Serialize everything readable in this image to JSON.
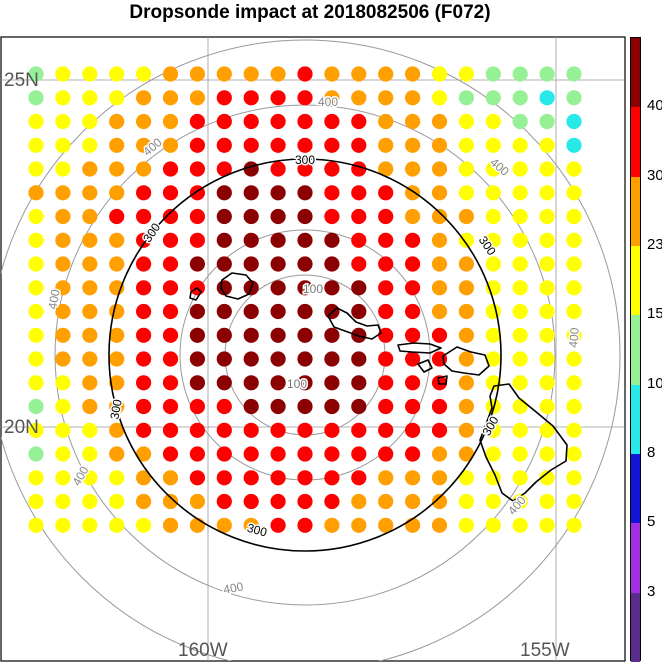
{
  "title": "Dropsonde impact at 2018082506 (F072)",
  "lat_labels": [
    "25N",
    "20N"
  ],
  "lon_labels": [
    "160W",
    "155W"
  ],
  "colorbar": {
    "levels": [
      "3",
      "5",
      "8",
      "10",
      "15",
      "23",
      "30",
      "40"
    ],
    "colors": [
      "#5a2d8c",
      "#a030e0",
      "#1414d8",
      "#28e8e8",
      "#96f096",
      "#ffff00",
      "#ffa000",
      "#ff0000",
      "#8b0000"
    ]
  },
  "contour_labels": {
    "inner": "100",
    "black": "300",
    "outer": "400"
  },
  "chart_data": {
    "type": "heatmap",
    "title": "Dropsonde impact at 2018082506 (F072)",
    "xlabel": "",
    "ylabel": "",
    "legend": "right colorbar",
    "contour_levels": [
      100,
      300,
      400
    ],
    "grid": "dot = color category index 0..8 matching colorbar.colors",
    "rows": [
      "455556666676666554444",
      "455566677776666544434",
      "555666777777766655443",
      "555666777777766655553",
      "556667778777766655555",
      "666677788887776655555",
      "566777788887776665555",
      "566677788888777655555",
      "566677888888777665555",
      "566677788888877665555",
      "566677888888877665555",
      "566677888888877765555",
      "566677888888877765555",
      "556677888888877765555",
      "456677778888877765555",
      "555677777777777765555",
      "455667777777777665555",
      "555566777777766655555",
      "555566677777666655555",
      "555556666776666655555"
    ]
  }
}
